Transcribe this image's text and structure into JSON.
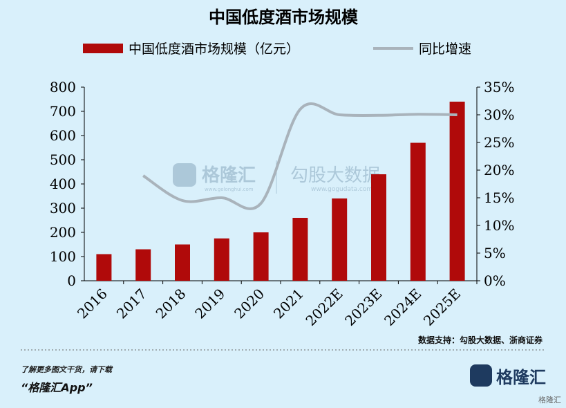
{
  "chart_data": {
    "type": "bar_line",
    "title": "中国低度酒市场规模",
    "categories": [
      "2016",
      "2017",
      "2018",
      "2019",
      "2020",
      "2021",
      "2022E",
      "2023E",
      "2024E",
      "2025E"
    ],
    "series": [
      {
        "name": "中国低度酒市场规模（亿元）",
        "type": "bar",
        "color": "#b00a0a",
        "values": [
          110,
          130,
          150,
          175,
          200,
          260,
          340,
          440,
          570,
          740
        ]
      },
      {
        "name": "同比增速",
        "type": "line",
        "axis": "y2",
        "color": "#a9b3bb",
        "values": [
          null,
          19,
          14.5,
          15,
          14,
          31,
          30,
          29.9,
          30.1,
          30
        ]
      }
    ],
    "ylim": [
      0,
      800
    ],
    "yticks": [
      0,
      100,
      200,
      300,
      400,
      500,
      600,
      700,
      800
    ],
    "y2lim": [
      0,
      35
    ],
    "y2ticks": [
      {
        "value": 0,
        "label": "0%"
      },
      {
        "value": 5,
        "label": "5%"
      },
      {
        "value": 10,
        "label": "10%"
      },
      {
        "value": 15,
        "label": "15%"
      },
      {
        "value": 20,
        "label": "20%"
      },
      {
        "value": 25,
        "label": "25%"
      },
      {
        "value": 30,
        "label": "30%"
      },
      {
        "value": 35,
        "label": "35%"
      }
    ],
    "source": "数据支持：勾股大数据、浙商证券"
  },
  "watermark": {
    "brand": "格隆汇",
    "brand_url": "www.gelonghui.com",
    "partner": "勾股大数据",
    "partner_url": "www.gogudata.com"
  },
  "footer": {
    "line1": "了解更多图文干货，请下载",
    "line2": "“格隆汇App”",
    "logo": "格隆汇",
    "corner": "格隆汇"
  }
}
